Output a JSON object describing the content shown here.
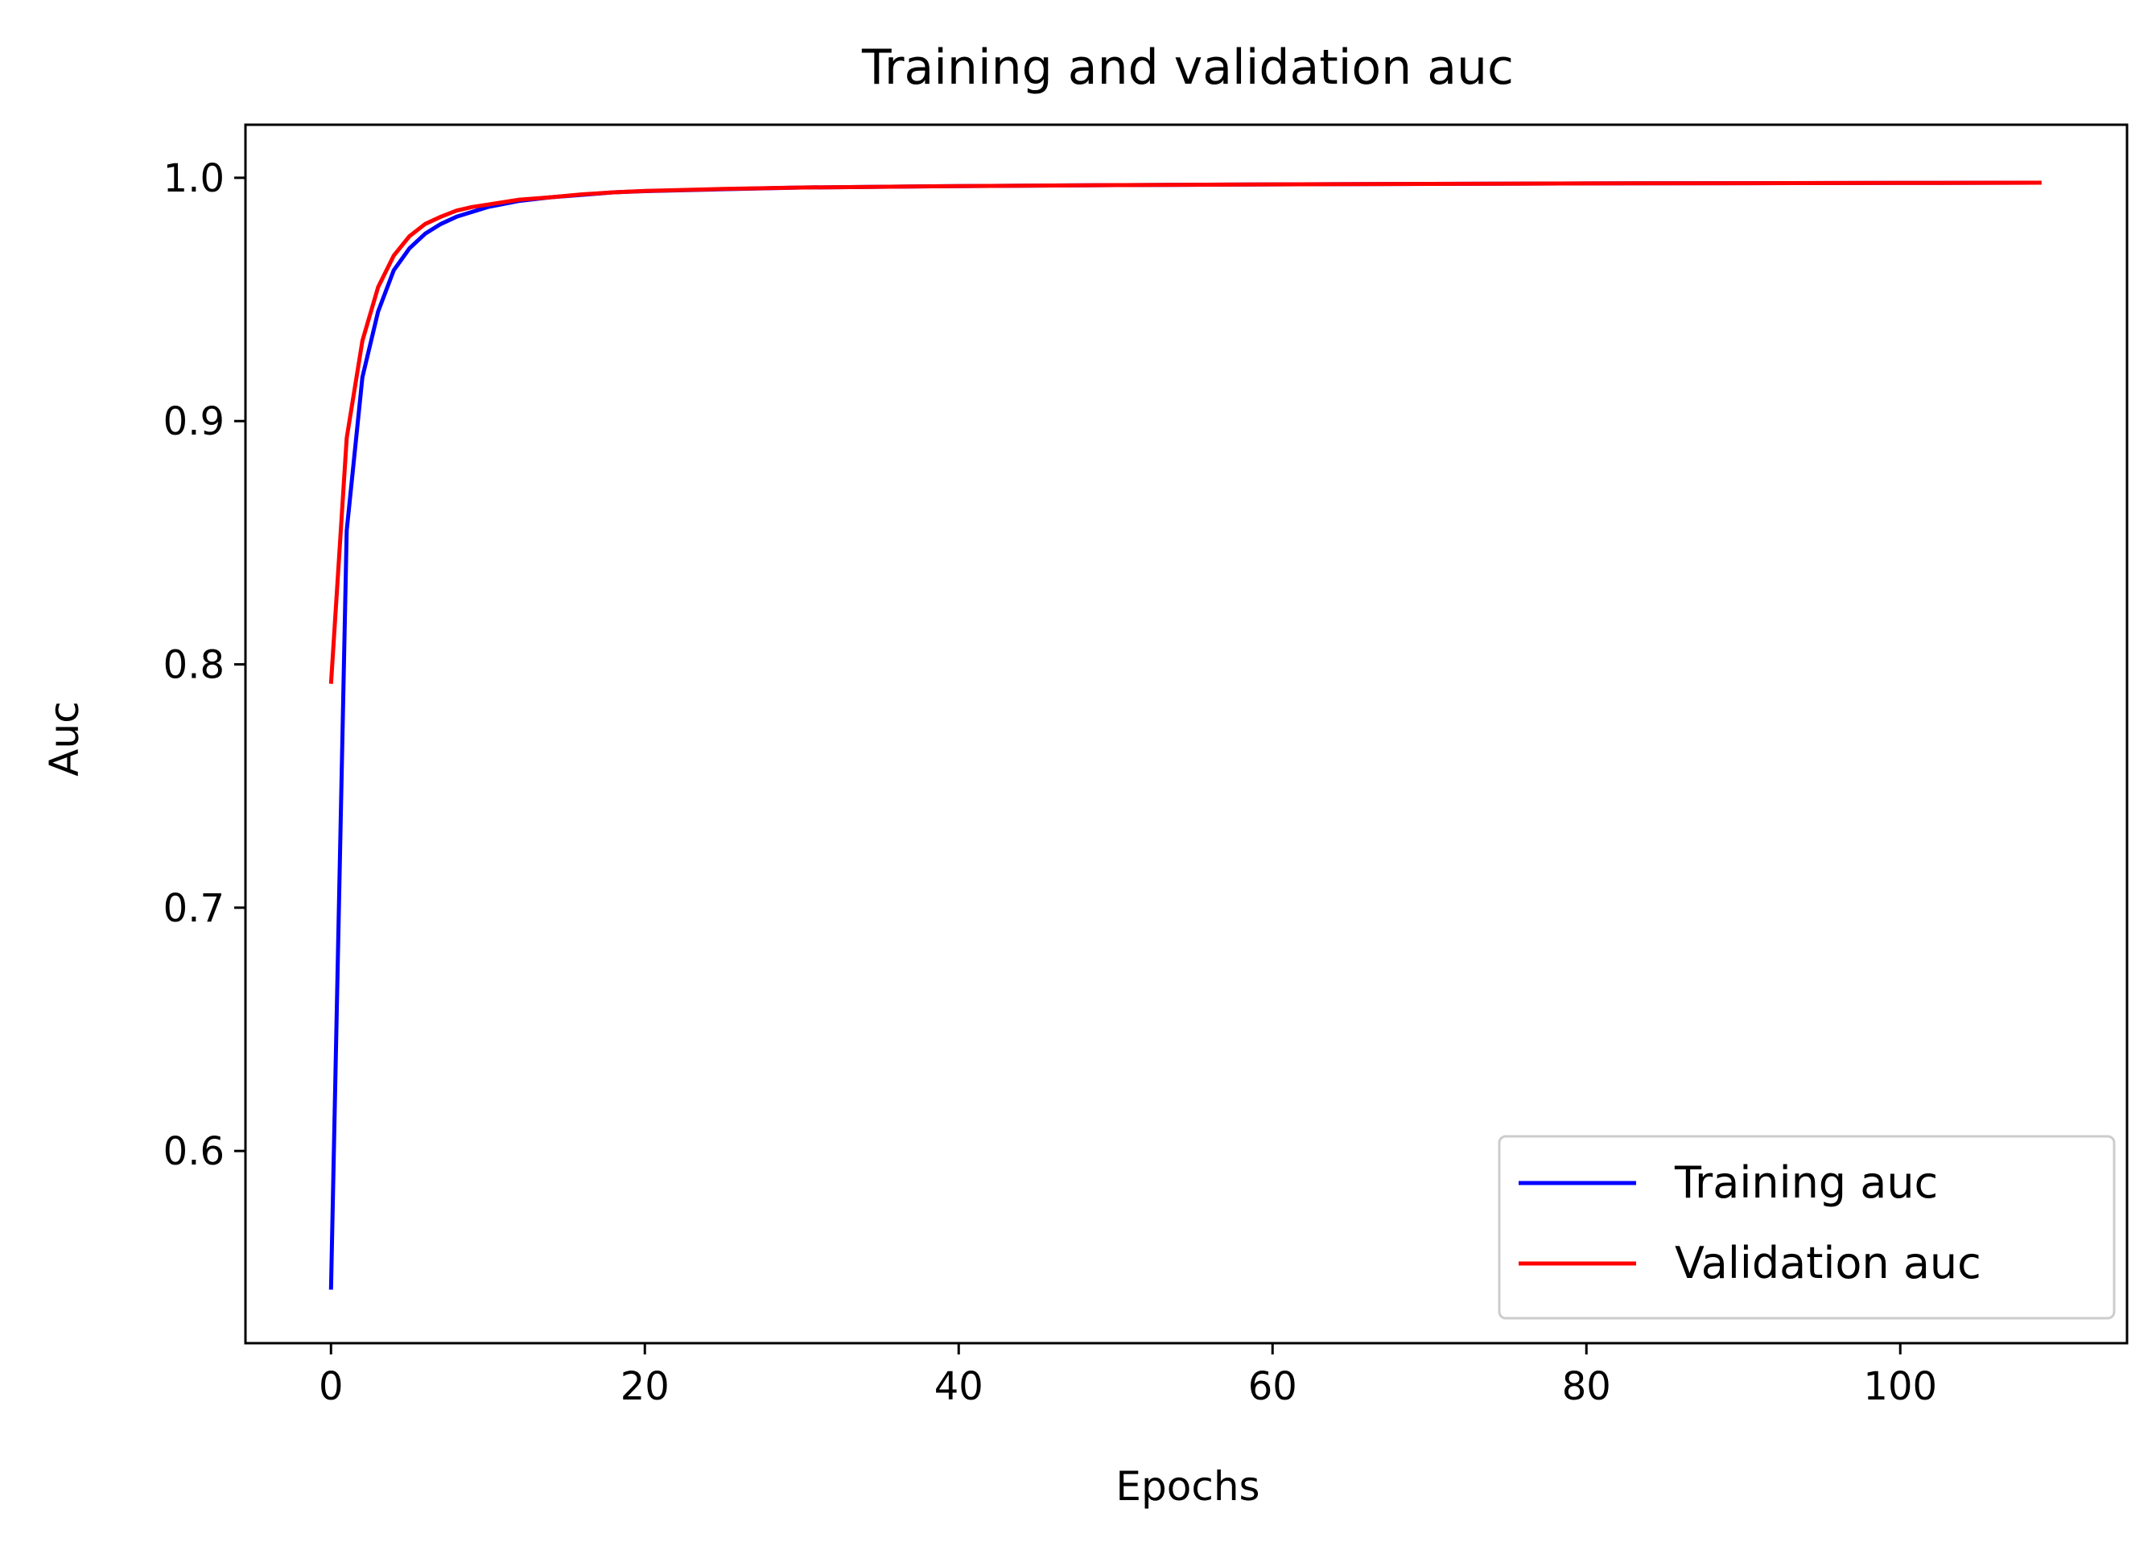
{
  "chart_data": {
    "type": "line",
    "title": "Training and validation auc",
    "xlabel": "Epochs",
    "ylabel": "Auc",
    "xlim": [
      -5.45,
      114.45
    ],
    "ylim": [
      0.521,
      1.0218
    ],
    "xticks": [
      0,
      20,
      40,
      60,
      80,
      100
    ],
    "yticks": [
      0.6,
      0.7,
      0.8,
      0.9,
      1.0
    ],
    "xtick_labels": [
      "0",
      "20",
      "40",
      "60",
      "80",
      "100"
    ],
    "ytick_labels": [
      "0.6",
      "0.7",
      "0.8",
      "0.9",
      "1.0"
    ],
    "grid": false,
    "legend_position": "lower right",
    "x": [
      0,
      1,
      2,
      3,
      4,
      5,
      6,
      7,
      8,
      9,
      10,
      12,
      14,
      16,
      18,
      20,
      25,
      30,
      40,
      50,
      60,
      70,
      80,
      90,
      100,
      109
    ],
    "series": [
      {
        "name": "Training auc",
        "color": "#0000ff",
        "values": [
          0.543,
          0.855,
          0.918,
          0.945,
          0.962,
          0.971,
          0.977,
          0.981,
          0.984,
          0.986,
          0.988,
          0.9905,
          0.992,
          0.993,
          0.994,
          0.9945,
          0.9953,
          0.996,
          0.9966,
          0.997,
          0.9973,
          0.9975,
          0.9977,
          0.9978,
          0.9979,
          0.998
        ]
      },
      {
        "name": "Validation auc",
        "color": "#ff0000",
        "values": [
          0.792,
          0.893,
          0.933,
          0.955,
          0.968,
          0.976,
          0.981,
          0.984,
          0.9865,
          0.988,
          0.989,
          0.991,
          0.992,
          0.9932,
          0.994,
          0.9946,
          0.9954,
          0.996,
          0.9966,
          0.997,
          0.9973,
          0.9975,
          0.9977,
          0.9978,
          0.9979,
          0.998
        ]
      }
    ]
  }
}
